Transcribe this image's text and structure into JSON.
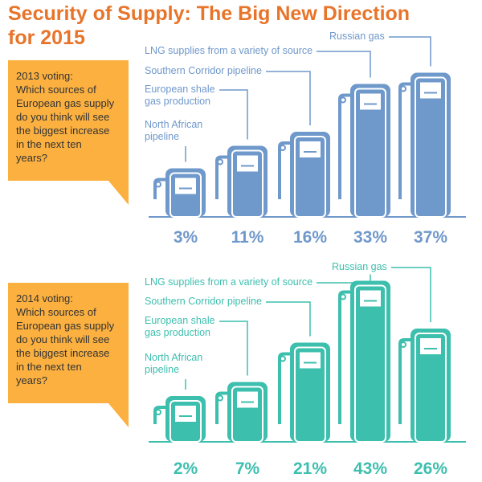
{
  "title": "Security of Supply: The Big New Direction\nfor 2015",
  "chart_data": [
    {
      "type": "bar",
      "question": "2013 voting:\nWhich sources of\nEuropean gas supply\ndo you think will see\nthe biggest increase\nin the next ten\nyears?",
      "categories": [
        "North African\npipeline",
        "European shale\ngas production",
        "Southern Corridor pipeline",
        "LNG supplies from a variety of source",
        "Russian gas"
      ],
      "values": [
        3,
        11,
        16,
        33,
        37
      ],
      "value_labels": [
        "3%",
        "11%",
        "16%",
        "33%",
        "37%"
      ],
      "color": "#6f98cb"
    },
    {
      "type": "bar",
      "question": "2014 voting:\nWhich sources of\nEuropean gas supply\ndo you think will see\nthe biggest increase\nin the next ten\nyears?",
      "categories": [
        "North African\npipeline",
        "European shale\ngas production",
        "Southern Corridor pipeline",
        "LNG supplies from a variety of source",
        "Russian gas"
      ],
      "values": [
        2,
        7,
        21,
        43,
        26
      ],
      "value_labels": [
        "2%",
        "7%",
        "21%",
        "43%",
        "26%"
      ],
      "color": "#3dbfae"
    }
  ]
}
